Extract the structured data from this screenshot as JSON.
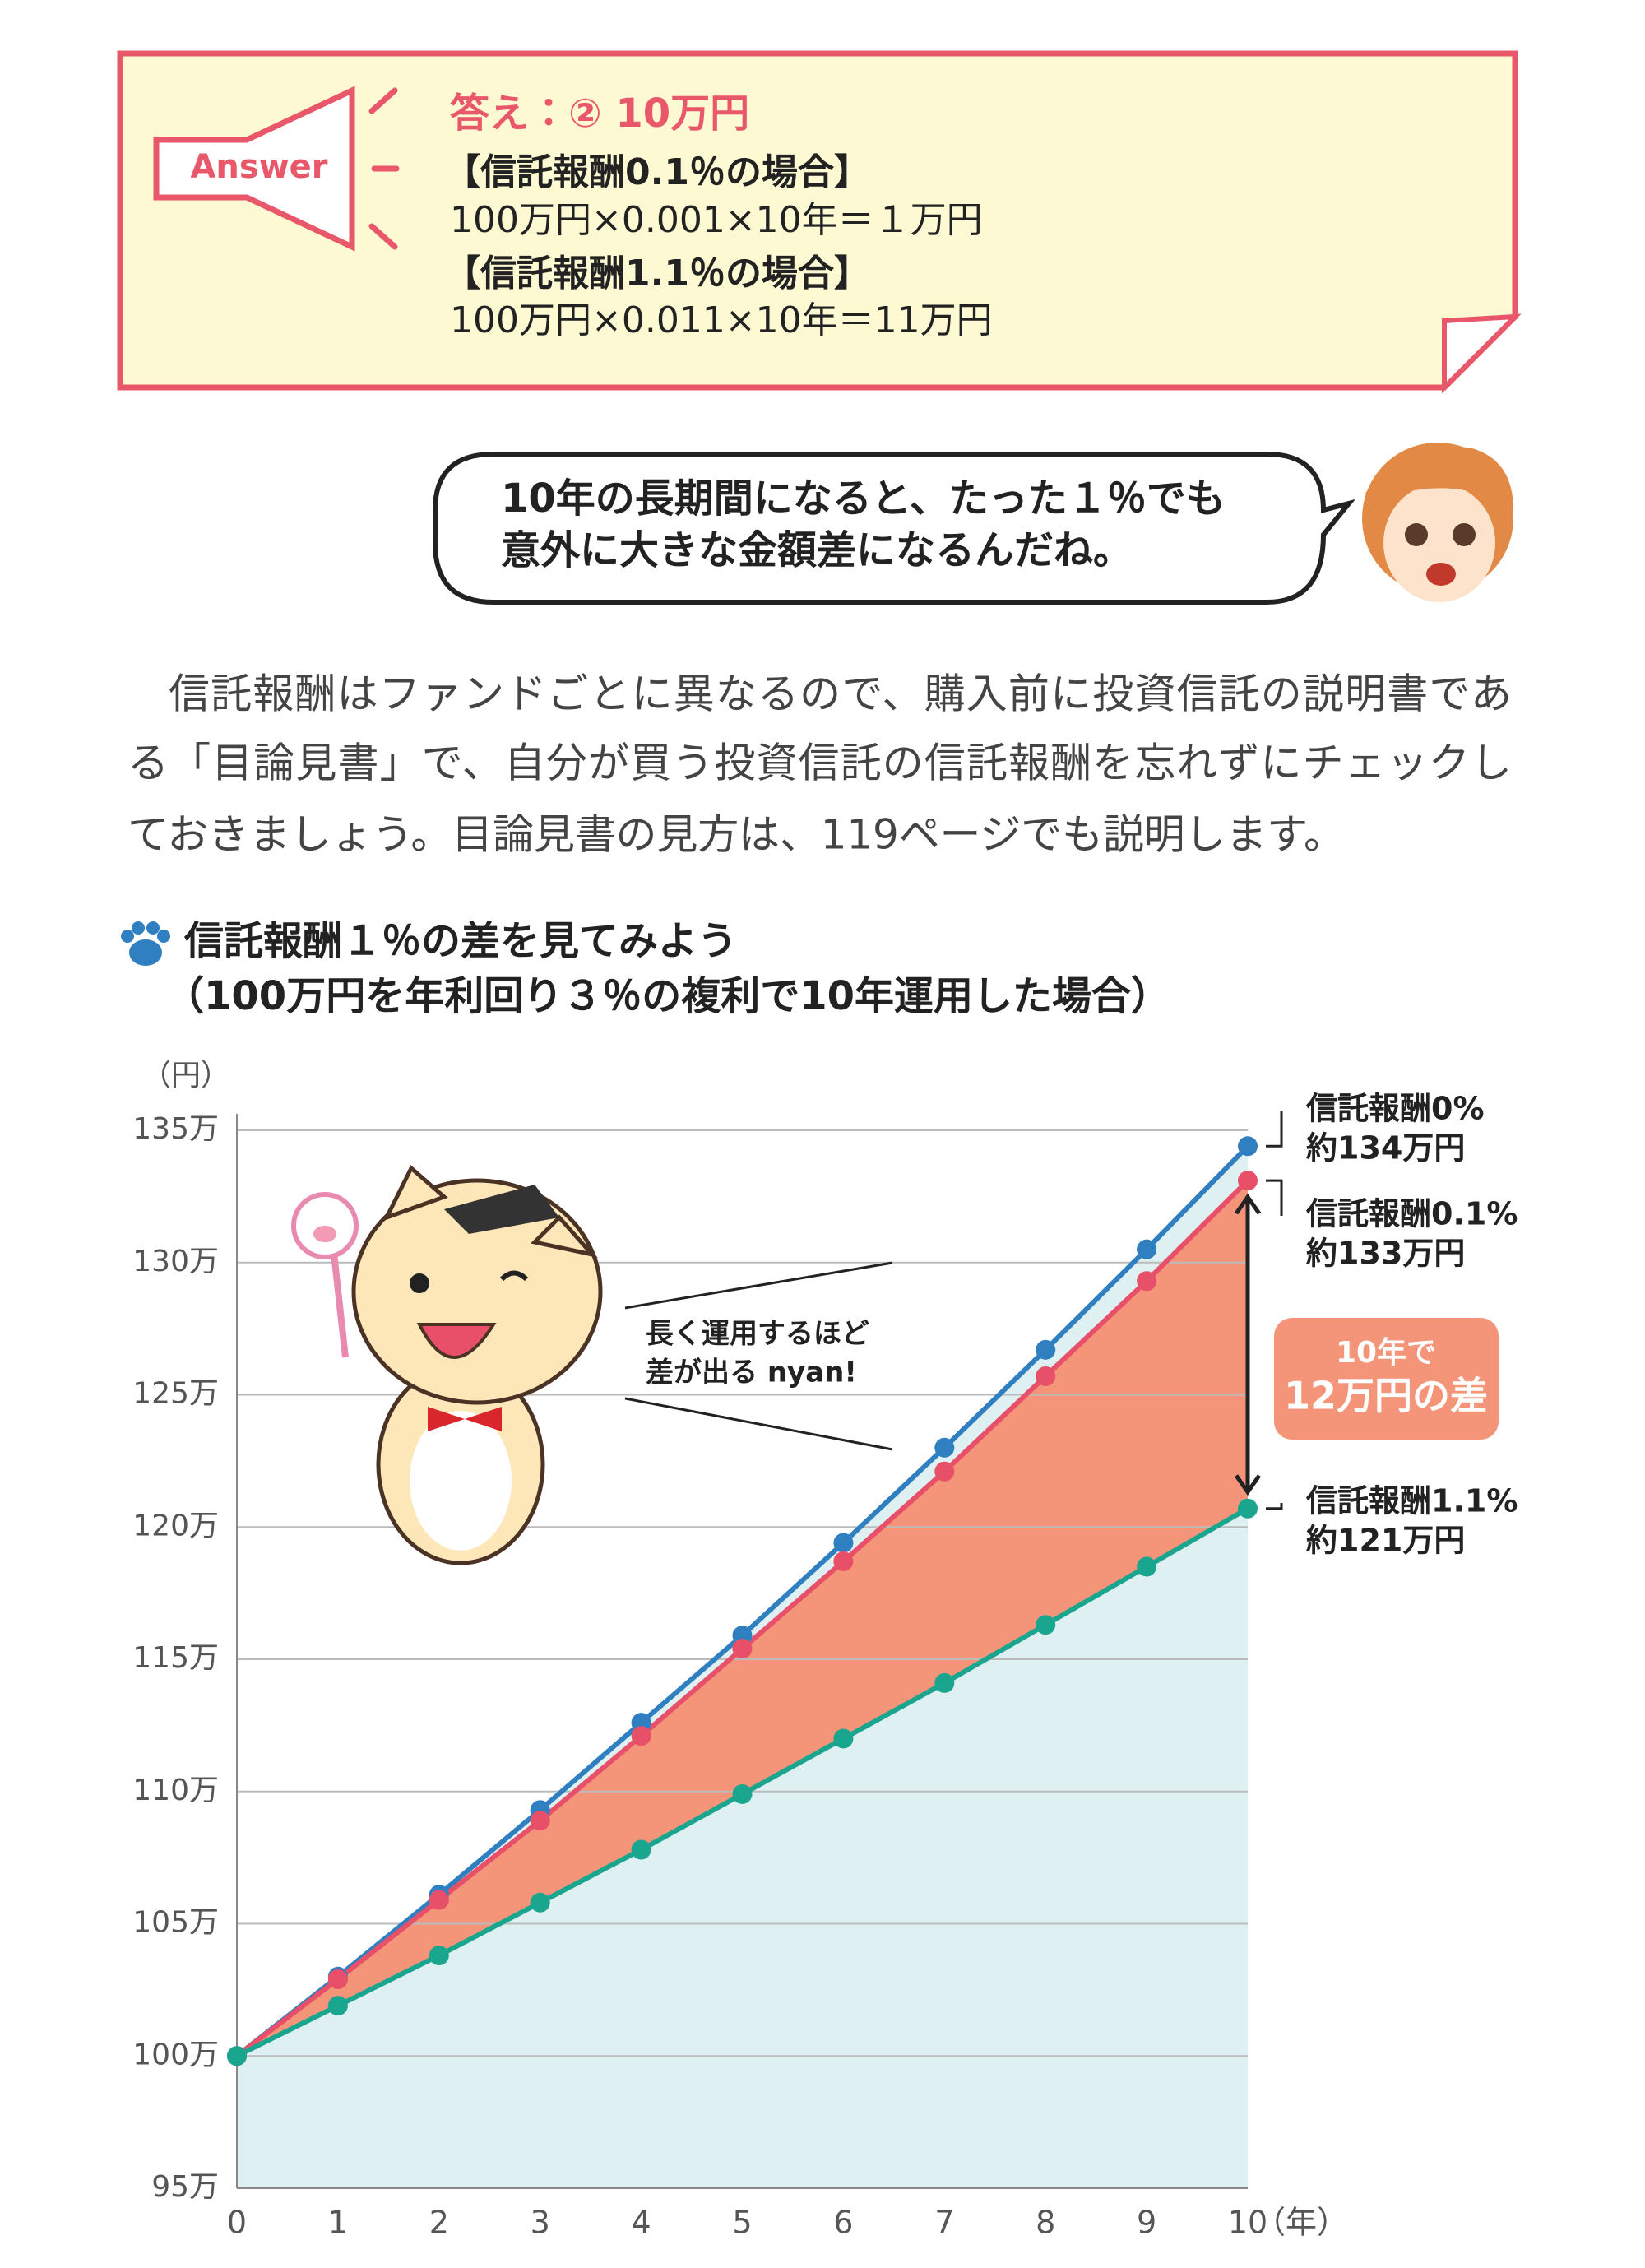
{
  "answer": {
    "badge": "Answer",
    "heading": "答え：② 10万円",
    "case1_title": "【信託報酬0.1％の場合】",
    "case1_formula": "100万円×0.001×10年＝１万円",
    "case2_title": "【信託報酬1.1％の場合】",
    "case2_formula": "100万円×0.011×10年＝11万円"
  },
  "dialogue": {
    "lines": [
      "10年の長期間になると、たった１％でも",
      "意外に大きな金額差になるんだね。"
    ]
  },
  "paragraph": {
    "lines": [
      "信託報酬はファンドごとに異なるので、購入前に投資信託の説明書であ",
      "る「目論見書」で、自分が買う投資信託の信託報酬を忘れずにチェックし",
      "ておきましょう。目論見書の見方は、119ページでも説明します。"
    ]
  },
  "chart_data": {
    "type": "line",
    "title": "信託報酬１％の差を見てみよう",
    "subtitle": "（100万円を年利回り３％の複利で10年運用した場合）",
    "y_unit": "（円）",
    "x_unit": "（年）",
    "x": [
      0,
      1,
      2,
      3,
      4,
      5,
      6,
      7,
      8,
      9,
      10
    ],
    "xlim": [
      0,
      10
    ],
    "xticks": [
      0,
      1,
      2,
      3,
      4,
      5,
      6,
      7,
      8,
      9,
      10
    ],
    "ylim": [
      95,
      135
    ],
    "yticks": [
      {
        "value": 95,
        "label": "95万"
      },
      {
        "value": 100,
        "label": "100万"
      },
      {
        "value": 105,
        "label": "105万"
      },
      {
        "value": 110,
        "label": "110万"
      },
      {
        "value": 115,
        "label": "115万"
      },
      {
        "value": 120,
        "label": "120万"
      },
      {
        "value": 125,
        "label": "125万"
      },
      {
        "value": 130,
        "label": "130万"
      },
      {
        "value": 135,
        "label": "135万"
      }
    ],
    "grid": true,
    "series": [
      {
        "name": "信託報酬0%",
        "end_label": "約134万円",
        "color": "#2f7fc1",
        "values": [
          100,
          103,
          106.1,
          109.3,
          112.6,
          115.9,
          119.4,
          123.0,
          126.7,
          130.5,
          134.4
        ]
      },
      {
        "name": "信託報酬0.1%",
        "end_label": "約133万円",
        "color": "#e8506a",
        "values": [
          100,
          102.9,
          105.9,
          108.9,
          112.1,
          115.4,
          118.7,
          122.1,
          125.7,
          129.3,
          133.1
        ]
      },
      {
        "name": "信託報酬1.1%",
        "end_label": "約121万円",
        "color": "#1aa58f",
        "values": [
          100,
          101.9,
          103.8,
          105.8,
          107.8,
          109.9,
          112.0,
          114.1,
          116.3,
          118.5,
          120.7
        ]
      }
    ],
    "difference_note": [
      "10年で",
      "12万円の差"
    ],
    "character_note": [
      "長く運用するほど",
      "差が出る nyan!"
    ]
  }
}
